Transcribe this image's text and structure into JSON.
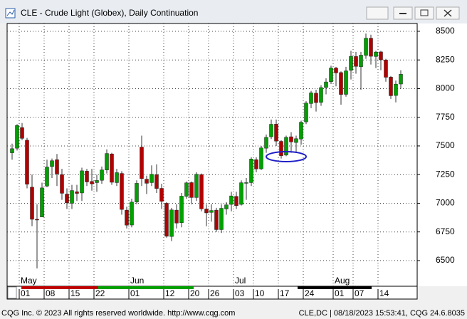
{
  "chart_data": {
    "type": "candlestick",
    "title": "CLE - Crude Light (Globex), Daily Continuation",
    "categories": [
      null,
      null,
      "01",
      null,
      null,
      null,
      null,
      "08",
      null,
      null,
      null,
      null,
      "15",
      null,
      null,
      null,
      null,
      "22",
      null,
      null,
      null,
      null,
      null,
      null,
      "01",
      null,
      null,
      null,
      null,
      null,
      null,
      "12",
      null,
      null,
      null,
      null,
      "20",
      null,
      null,
      null,
      "26",
      null,
      null,
      null,
      null,
      "03",
      null,
      null,
      null,
      "10",
      null,
      null,
      null,
      null,
      "17",
      null,
      null,
      null,
      null,
      "24",
      null,
      null,
      null,
      null,
      null,
      "01",
      null,
      null,
      null,
      "07",
      null,
      null,
      null,
      null,
      "14",
      null,
      null,
      null,
      null
    ],
    "months": [
      {
        "category": 2,
        "label": "May"
      },
      {
        "category": 24,
        "label": "Jun"
      },
      {
        "category": 45,
        "label": "Jul"
      },
      {
        "category": 65,
        "label": "Aug"
      }
    ],
    "open": [
      7440,
      7480,
      7660,
      7550,
      7140,
      6860,
      6880,
      7150,
      7320,
      7380,
      7250,
      7080,
      7000,
      7100,
      7090,
      7280,
      7190,
      7180,
      7200,
      7290,
      7430,
      7180,
      7260,
      6940,
      6810,
      7010,
      7490,
      7210,
      7180,
      7250,
      7130,
      7000,
      6710,
      6940,
      6830,
      7060,
      7180,
      7050,
      7250,
      6950,
      6920,
      6940,
      6770,
      6950,
      6990,
      7060,
      6990,
      7180,
      7180,
      7380,
      7300,
      7480,
      7580,
      7690,
      7540,
      7420,
      7580,
      7530,
      7560,
      7710,
      7870,
      7960,
      7880,
      8010,
      8060,
      8180,
      8140,
      7950,
      8160,
      8280,
      8190,
      8290,
      8440,
      8280,
      8320,
      8250,
      8100,
      7940,
      8040
    ],
    "high": [
      7520,
      7690,
      7700,
      7570,
      7250,
      6990,
      7180,
      7380,
      7390,
      7430,
      7300,
      7130,
      7160,
      7160,
      7310,
      7300,
      7300,
      7250,
      7320,
      7470,
      7440,
      7300,
      7280,
      6970,
      7040,
      7200,
      7590,
      7240,
      7330,
      7340,
      7170,
      7010,
      6960,
      6990,
      7090,
      7190,
      7190,
      7270,
      7260,
      6990,
      6990,
      6960,
      6990,
      7010,
      7100,
      7100,
      7200,
      7220,
      7400,
      7400,
      7500,
      7600,
      7730,
      7730,
      7550,
      7590,
      7620,
      7590,
      7720,
      7890,
      7980,
      7990,
      8030,
      8090,
      8200,
      8190,
      8150,
      8190,
      8330,
      8320,
      8320,
      8480,
      8470,
      8330,
      8330,
      8260,
      8110,
      8070,
      8160
    ],
    "low": [
      7380,
      7460,
      7550,
      7130,
      6800,
      6431,
      6880,
      7140,
      7220,
      7150,
      7030,
      6950,
      6950,
      7020,
      7020,
      7150,
      7110,
      7100,
      7170,
      7260,
      7160,
      7150,
      6900,
      6780,
      6790,
      6990,
      7150,
      7080,
      7150,
      7090,
      6950,
      6700,
      6670,
      6780,
      6790,
      7040,
      6990,
      7020,
      6930,
      6800,
      6840,
      6750,
      6740,
      6900,
      6930,
      6950,
      6980,
      7030,
      7150,
      7270,
      7290,
      7440,
      7560,
      7500,
      7390,
      7410,
      7440,
      7440,
      7510,
      7690,
      7830,
      7800,
      7850,
      7950,
      8040,
      8020,
      7860,
      7930,
      8080,
      8130,
      7990,
      8260,
      8210,
      8180,
      8160,
      8060,
      7910,
      7880,
      8000
    ],
    "close": [
      7476,
      7678,
      7566,
      7166,
      6860,
      6856,
      7134,
      7316,
      7371,
      7256,
      7087,
      7004,
      7111,
      7086,
      7283,
      7186,
      7169,
      7199,
      7291,
      7434,
      7183,
      7267,
      6946,
      6809,
      7010,
      7174,
      7215,
      7174,
      7253,
      7129,
      7017,
      6712,
      6942,
      6827,
      7062,
      7178,
      7050,
      7253,
      6951,
      6916,
      6937,
      6770,
      6956,
      6986,
      7064,
      6979,
      7179,
      7180,
      7386,
      7299,
      7483,
      7575,
      7689,
      7542,
      7415,
      7575,
      7535,
      7563,
      7707,
      7874,
      7963,
      7878,
      8009,
      8058,
      8180,
      8137,
      7949,
      8155,
      8282,
      8194,
      8292,
      8440,
      8282,
      8319,
      8251,
      8099,
      7938,
      8039,
      8125
    ],
    "up_color": "#00a000",
    "down_color": "#b00000",
    "ylim": [
      6276,
      8568
    ],
    "yticks": [
      6500,
      6750,
      7000,
      7250,
      7500,
      7750,
      8000,
      8250,
      8500
    ],
    "grid": true
  },
  "footer": {
    "copyright": "CQG Inc. © 2023 All rights reserved worldwide. http://www.cqg.com",
    "status": "CLE,DC | 08/18/2023 15:53:41, CQG 24.6.8035"
  }
}
